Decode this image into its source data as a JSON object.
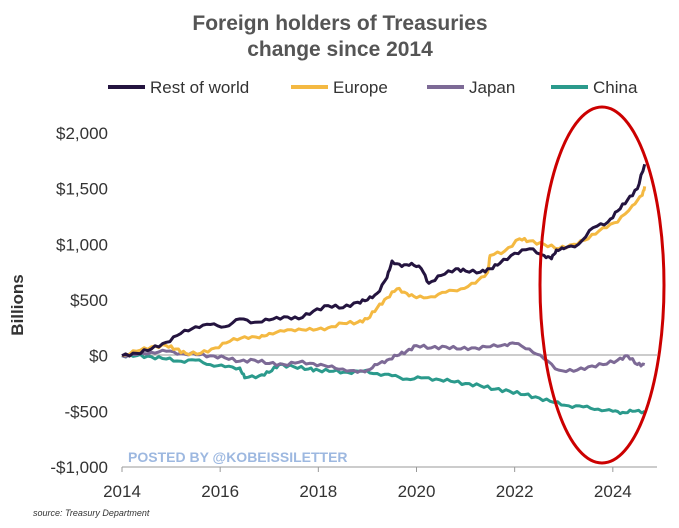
{
  "chart_data": {
    "type": "line",
    "title": [
      "Foreign holders of Treasuries",
      "change since 2014"
    ],
    "ylabel": "Billions",
    "xlabel": "",
    "xlim": [
      2014,
      2024.9
    ],
    "ylim": [
      -1000,
      2000
    ],
    "x_ticks": [
      2014,
      2016,
      2018,
      2020,
      2022,
      2024
    ],
    "x_tick_labels": [
      "2014",
      "2016",
      "2018",
      "2020",
      "2022",
      "2024"
    ],
    "y_ticks": [
      2000,
      1500,
      1000,
      500,
      0,
      -500,
      -1000
    ],
    "y_tick_labels": [
      "$2,000",
      "$1,500",
      "$1,000",
      "$500",
      "$0",
      "-$500",
      "-$1,000"
    ],
    "grid": false,
    "legend_position": "top",
    "series": [
      {
        "name": "Rest of world",
        "color": "#24143f",
        "points": [
          [
            2014.0,
            0
          ],
          [
            2014.3,
            20
          ],
          [
            2014.6,
            60
          ],
          [
            2014.9,
            120
          ],
          [
            2015.2,
            200
          ],
          [
            2015.5,
            260
          ],
          [
            2015.8,
            280
          ],
          [
            2016.1,
            260
          ],
          [
            2016.4,
            330
          ],
          [
            2016.7,
            300
          ],
          [
            2017.0,
            320
          ],
          [
            2017.3,
            350
          ],
          [
            2017.6,
            330
          ],
          [
            2017.9,
            400
          ],
          [
            2018.2,
            450
          ],
          [
            2018.5,
            430
          ],
          [
            2018.8,
            480
          ],
          [
            2019.0,
            500
          ],
          [
            2019.2,
            560
          ],
          [
            2019.4,
            700
          ],
          [
            2019.5,
            850
          ],
          [
            2019.7,
            800
          ],
          [
            2019.9,
            830
          ],
          [
            2020.1,
            780
          ],
          [
            2020.25,
            650
          ],
          [
            2020.5,
            720
          ],
          [
            2020.8,
            780
          ],
          [
            2021.0,
            760
          ],
          [
            2021.3,
            750
          ],
          [
            2021.5,
            780
          ],
          [
            2021.7,
            830
          ],
          [
            2022.0,
            920
          ],
          [
            2022.3,
            960
          ],
          [
            2022.6,
            900
          ],
          [
            2022.75,
            870
          ],
          [
            2022.85,
            950
          ],
          [
            2023.0,
            960
          ],
          [
            2023.3,
            1000
          ],
          [
            2023.6,
            1150
          ],
          [
            2023.9,
            1200
          ],
          [
            2024.1,
            1300
          ],
          [
            2024.3,
            1400
          ],
          [
            2024.5,
            1500
          ],
          [
            2024.65,
            1720
          ]
        ]
      },
      {
        "name": "Europe",
        "color": "#f4b942",
        "points": [
          [
            2014.0,
            0
          ],
          [
            2014.3,
            40
          ],
          [
            2014.6,
            80
          ],
          [
            2014.9,
            90
          ],
          [
            2015.1,
            60
          ],
          [
            2015.3,
            20
          ],
          [
            2015.6,
            20
          ],
          [
            2015.9,
            70
          ],
          [
            2016.2,
            130
          ],
          [
            2016.5,
            170
          ],
          [
            2016.8,
            160
          ],
          [
            2017.0,
            200
          ],
          [
            2017.3,
            220
          ],
          [
            2017.6,
            240
          ],
          [
            2017.9,
            230
          ],
          [
            2018.2,
            250
          ],
          [
            2018.5,
            290
          ],
          [
            2018.8,
            300
          ],
          [
            2019.0,
            330
          ],
          [
            2019.2,
            430
          ],
          [
            2019.4,
            520
          ],
          [
            2019.6,
            600
          ],
          [
            2019.8,
            560
          ],
          [
            2020.0,
            520
          ],
          [
            2020.3,
            530
          ],
          [
            2020.6,
            570
          ],
          [
            2020.9,
            600
          ],
          [
            2021.2,
            650
          ],
          [
            2021.45,
            750
          ],
          [
            2021.5,
            900
          ],
          [
            2021.8,
            940
          ],
          [
            2022.1,
            1050
          ],
          [
            2022.3,
            1030
          ],
          [
            2022.6,
            1000
          ],
          [
            2022.9,
            960
          ],
          [
            2023.2,
            1000
          ],
          [
            2023.5,
            1050
          ],
          [
            2023.8,
            1150
          ],
          [
            2024.1,
            1200
          ],
          [
            2024.4,
            1350
          ],
          [
            2024.6,
            1440
          ],
          [
            2024.65,
            1520
          ]
        ]
      },
      {
        "name": "Japan",
        "color": "#7d6a96",
        "points": [
          [
            2014.0,
            0
          ],
          [
            2014.3,
            10
          ],
          [
            2014.6,
            30
          ],
          [
            2014.9,
            40
          ],
          [
            2015.2,
            20
          ],
          [
            2015.5,
            10
          ],
          [
            2015.8,
            0
          ],
          [
            2016.1,
            -20
          ],
          [
            2016.4,
            -50
          ],
          [
            2016.7,
            -40
          ],
          [
            2017.0,
            -70
          ],
          [
            2017.3,
            -80
          ],
          [
            2017.6,
            -60
          ],
          [
            2017.9,
            -70
          ],
          [
            2018.2,
            -100
          ],
          [
            2018.5,
            -120
          ],
          [
            2018.8,
            -150
          ],
          [
            2019.0,
            -130
          ],
          [
            2019.2,
            -80
          ],
          [
            2019.4,
            -40
          ],
          [
            2019.6,
            0
          ],
          [
            2019.8,
            40
          ],
          [
            2020.0,
            90
          ],
          [
            2020.3,
            70
          ],
          [
            2020.6,
            80
          ],
          [
            2020.9,
            60
          ],
          [
            2021.2,
            70
          ],
          [
            2021.5,
            80
          ],
          [
            2021.8,
            100
          ],
          [
            2022.0,
            110
          ],
          [
            2022.3,
            60
          ],
          [
            2022.6,
            -30
          ],
          [
            2022.9,
            -130
          ],
          [
            2023.2,
            -140
          ],
          [
            2023.5,
            -100
          ],
          [
            2023.8,
            -80
          ],
          [
            2024.1,
            -40
          ],
          [
            2024.3,
            0
          ],
          [
            2024.5,
            -80
          ],
          [
            2024.65,
            -80
          ]
        ]
      },
      {
        "name": "China",
        "color": "#2b9a8c",
        "points": [
          [
            2014.0,
            0
          ],
          [
            2014.3,
            0
          ],
          [
            2014.6,
            -10
          ],
          [
            2014.9,
            -30
          ],
          [
            2015.2,
            -50
          ],
          [
            2015.5,
            -40
          ],
          [
            2015.8,
            -80
          ],
          [
            2016.1,
            -100
          ],
          [
            2016.4,
            -110
          ],
          [
            2016.5,
            -200
          ],
          [
            2016.8,
            -180
          ],
          [
            2017.0,
            -150
          ],
          [
            2017.2,
            -80
          ],
          [
            2017.5,
            -100
          ],
          [
            2017.8,
            -120
          ],
          [
            2018.0,
            -130
          ],
          [
            2018.3,
            -140
          ],
          [
            2018.6,
            -150
          ],
          [
            2018.9,
            -140
          ],
          [
            2019.2,
            -160
          ],
          [
            2019.5,
            -180
          ],
          [
            2019.8,
            -210
          ],
          [
            2020.1,
            -200
          ],
          [
            2020.4,
            -210
          ],
          [
            2020.7,
            -230
          ],
          [
            2021.0,
            -250
          ],
          [
            2021.3,
            -270
          ],
          [
            2021.6,
            -300
          ],
          [
            2021.9,
            -320
          ],
          [
            2022.2,
            -350
          ],
          [
            2022.5,
            -380
          ],
          [
            2022.8,
            -420
          ],
          [
            2023.1,
            -450
          ],
          [
            2023.4,
            -460
          ],
          [
            2023.7,
            -480
          ],
          [
            2024.0,
            -500
          ],
          [
            2024.2,
            -510
          ],
          [
            2024.4,
            -500
          ],
          [
            2024.65,
            -500
          ]
        ]
      }
    ],
    "watermark": "POSTED BY @KOBEISSILETTER",
    "source": "source: Treasury Department"
  },
  "colors": {
    "axis": "#999999",
    "highlight_ellipse": "#cc0000"
  }
}
